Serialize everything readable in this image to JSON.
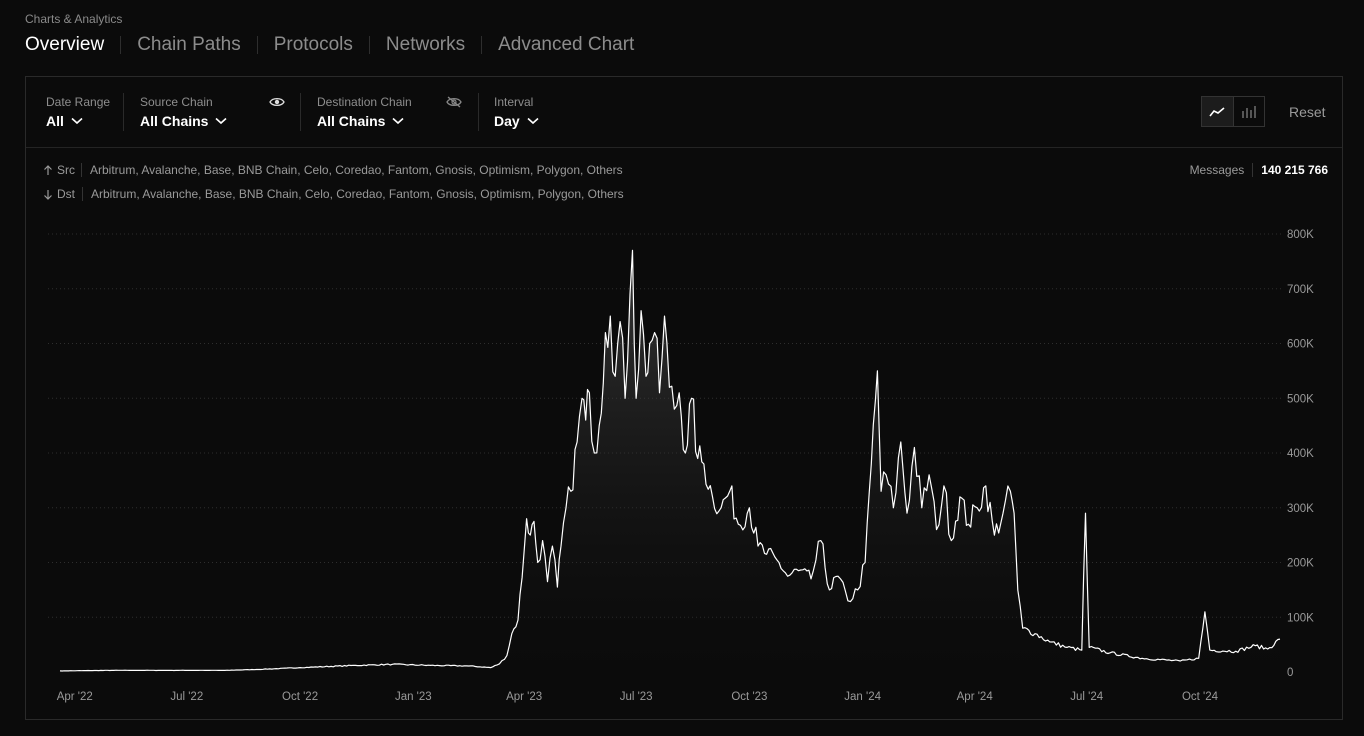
{
  "breadcrumb": "Charts & Analytics",
  "tabs": [
    {
      "label": "Overview",
      "active": true
    },
    {
      "label": "Chain Paths"
    },
    {
      "label": "Protocols"
    },
    {
      "label": "Networks"
    },
    {
      "label": "Advanced Chart"
    }
  ],
  "filters": {
    "date_range": {
      "label": "Date Range",
      "value": "All"
    },
    "source_chain": {
      "label": "Source Chain",
      "value": "All Chains"
    },
    "destination_chain": {
      "label": "Destination Chain",
      "value": "All Chains"
    },
    "interval": {
      "label": "Interval",
      "value": "Day"
    }
  },
  "icons": {
    "source_visibility": "eye-icon",
    "destination_visibility": "eye-off-icon",
    "line_chart": "line-chart-icon",
    "bar_chart": "bar-chart-icon",
    "dropdown": "chevron-down-icon",
    "src_arrow": "arrow-up-icon",
    "dst_arrow": "arrow-down-icon"
  },
  "reset_label": "Reset",
  "route": {
    "src_label": "Src",
    "src_chains": "Arbitrum, Avalanche, Base, BNB Chain, Celo, Coredao, Fantom, Gnosis, Optimism, Polygon, Others",
    "dst_label": "Dst",
    "dst_chains": "Arbitrum, Avalanche, Base, BNB Chain, Celo, Coredao, Fantom, Gnosis, Optimism, Polygon, Others"
  },
  "messages": {
    "label": "Messages",
    "value": "140 215 766"
  },
  "colors": {
    "background": "#0b0b0b",
    "line": "#ffffff",
    "grid": "#2a2a2a"
  },
  "chart_data": {
    "type": "area",
    "title": "",
    "xlabel": "",
    "ylabel": "",
    "grid": true,
    "x_ticks": [
      "Apr '22",
      "Jul '22",
      "Oct '22",
      "Jan '23",
      "Apr '23",
      "Jul '23",
      "Oct '23",
      "Jan '24",
      "Apr '24",
      "Jul '24",
      "Oct '24"
    ],
    "y_ticks": [
      "800K",
      "700K",
      "600K",
      "500K",
      "400K",
      "300K",
      "200K",
      "100K",
      "0"
    ],
    "ylim": [
      0,
      800000
    ],
    "x_range": [
      "2022-03-20",
      "2024-12-05"
    ],
    "series": [
      {
        "values": [
          [
            "2022-03-20",
            2000
          ],
          [
            "2022-05-01",
            3000
          ],
          [
            "2022-06-15",
            3000
          ],
          [
            "2022-08-01",
            3000
          ],
          [
            "2022-09-01",
            5000
          ],
          [
            "2022-10-01",
            8000
          ],
          [
            "2022-11-15",
            12000
          ],
          [
            "2022-12-15",
            14000
          ],
          [
            "2023-01-15",
            12000
          ],
          [
            "2023-02-15",
            11000
          ],
          [
            "2023-03-05",
            8000
          ],
          [
            "2023-03-12",
            15000
          ],
          [
            "2023-03-18",
            30000
          ],
          [
            "2023-03-22",
            70000
          ],
          [
            "2023-03-27",
            95000
          ],
          [
            "2023-04-01",
            220000
          ],
          [
            "2023-04-03",
            280000
          ],
          [
            "2023-04-06",
            250000
          ],
          [
            "2023-04-09",
            275000
          ],
          [
            "2023-04-12",
            200000
          ],
          [
            "2023-04-16",
            240000
          ],
          [
            "2023-04-20",
            165000
          ],
          [
            "2023-04-24",
            230000
          ],
          [
            "2023-04-28",
            155000
          ],
          [
            "2023-05-01",
            230000
          ],
          [
            "2023-05-05",
            300000
          ],
          [
            "2023-05-09",
            330000
          ],
          [
            "2023-05-14",
            420000
          ],
          [
            "2023-05-18",
            500000
          ],
          [
            "2023-05-21",
            460000
          ],
          [
            "2023-05-24",
            510000
          ],
          [
            "2023-05-28",
            400000
          ],
          [
            "2023-06-01",
            450000
          ],
          [
            "2023-06-06",
            620000
          ],
          [
            "2023-06-10",
            650000
          ],
          [
            "2023-06-14",
            540000
          ],
          [
            "2023-06-18",
            640000
          ],
          [
            "2023-06-22",
            500000
          ],
          [
            "2023-06-26",
            690000
          ],
          [
            "2023-06-28",
            770000
          ],
          [
            "2023-07-01",
            500000
          ],
          [
            "2023-07-05",
            660000
          ],
          [
            "2023-07-09",
            540000
          ],
          [
            "2023-07-12",
            600000
          ],
          [
            "2023-07-16",
            620000
          ],
          [
            "2023-07-20",
            510000
          ],
          [
            "2023-07-24",
            650000
          ],
          [
            "2023-07-28",
            520000
          ],
          [
            "2023-08-01",
            480000
          ],
          [
            "2023-08-05",
            510000
          ],
          [
            "2023-08-10",
            400000
          ],
          [
            "2023-08-15",
            500000
          ],
          [
            "2023-08-20",
            390000
          ],
          [
            "2023-08-25",
            380000
          ],
          [
            "2023-09-01",
            320000
          ],
          [
            "2023-09-08",
            300000
          ],
          [
            "2023-09-15",
            330000
          ],
          [
            "2023-09-22",
            270000
          ],
          [
            "2023-10-01",
            300000
          ],
          [
            "2023-10-08",
            230000
          ],
          [
            "2023-10-15",
            215000
          ],
          [
            "2023-10-25",
            200000
          ],
          [
            "2023-11-01",
            175000
          ],
          [
            "2023-11-10",
            185000
          ],
          [
            "2023-11-20",
            170000
          ],
          [
            "2023-11-28",
            240000
          ],
          [
            "2023-12-05",
            150000
          ],
          [
            "2023-12-12",
            175000
          ],
          [
            "2023-12-20",
            130000
          ],
          [
            "2023-12-28",
            150000
          ],
          [
            "2024-01-03",
            200000
          ],
          [
            "2024-01-08",
            380000
          ],
          [
            "2024-01-13",
            550000
          ],
          [
            "2024-01-16",
            330000
          ],
          [
            "2024-01-20",
            360000
          ],
          [
            "2024-01-26",
            300000
          ],
          [
            "2024-02-01",
            420000
          ],
          [
            "2024-02-06",
            290000
          ],
          [
            "2024-02-12",
            410000
          ],
          [
            "2024-02-18",
            300000
          ],
          [
            "2024-02-24",
            360000
          ],
          [
            "2024-03-01",
            260000
          ],
          [
            "2024-03-07",
            340000
          ],
          [
            "2024-03-13",
            240000
          ],
          [
            "2024-03-20",
            320000
          ],
          [
            "2024-03-27",
            270000
          ],
          [
            "2024-04-03",
            300000
          ],
          [
            "2024-04-10",
            340000
          ],
          [
            "2024-04-17",
            250000
          ],
          [
            "2024-04-24",
            290000
          ],
          [
            "2024-04-30",
            330000
          ],
          [
            "2024-05-03",
            290000
          ],
          [
            "2024-05-06",
            150000
          ],
          [
            "2024-05-10",
            80000
          ],
          [
            "2024-05-20",
            70000
          ],
          [
            "2024-06-01",
            55000
          ],
          [
            "2024-06-15",
            45000
          ],
          [
            "2024-06-27",
            40000
          ],
          [
            "2024-06-30",
            290000
          ],
          [
            "2024-07-03",
            45000
          ],
          [
            "2024-07-20",
            35000
          ],
          [
            "2024-08-15",
            25000
          ],
          [
            "2024-09-15",
            20000
          ],
          [
            "2024-09-30",
            25000
          ],
          [
            "2024-10-05",
            110000
          ],
          [
            "2024-10-09",
            40000
          ],
          [
            "2024-10-30",
            38000
          ],
          [
            "2024-11-15",
            48000
          ],
          [
            "2024-11-25",
            42000
          ],
          [
            "2024-12-05",
            60000
          ]
        ]
      }
    ]
  }
}
